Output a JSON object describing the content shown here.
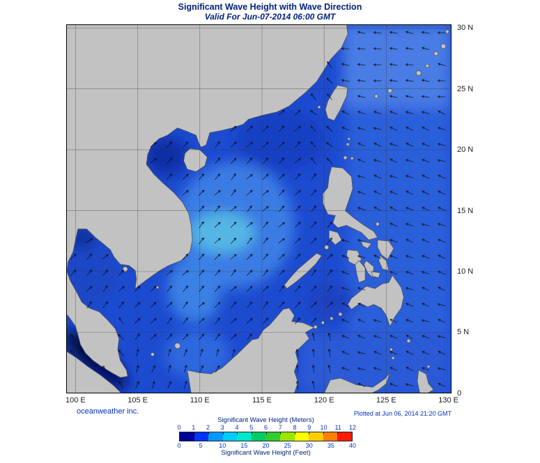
{
  "header": {
    "title": "Significant Wave Height with Wave Direction",
    "subtitle": "Valid For Jun-07-2014 06:00 GMT"
  },
  "map": {
    "lat_ticks": [
      {
        "text": "30 N",
        "deg": 30
      },
      {
        "text": "25 N",
        "deg": 25
      },
      {
        "text": "20 N",
        "deg": 20
      },
      {
        "text": "15 N",
        "deg": 15
      },
      {
        "text": "10 N",
        "deg": 10
      },
      {
        "text": "5 N",
        "deg": 5
      },
      {
        "text": "0",
        "deg": 0
      }
    ],
    "lon_ticks": [
      {
        "text": "100 E",
        "deg": 100
      },
      {
        "text": "105 E",
        "deg": 105
      },
      {
        "text": "110 E",
        "deg": 110
      },
      {
        "text": "115 E",
        "deg": 115
      },
      {
        "text": "120 E",
        "deg": 120
      },
      {
        "text": "125 E",
        "deg": 125
      },
      {
        "text": "130 E",
        "deg": 130
      }
    ],
    "sea_base_color": "#1c4bd0",
    "land_color": "#c2c2c2",
    "coast_color": "#4d4d4d",
    "grid_color": "#333333",
    "arrow_color": "#101010"
  },
  "footer": {
    "credit": "oceanweather inc.",
    "plotted_at": "Plotted at Jun 06, 2014 21:20 GMT"
  },
  "legend": {
    "meters_title": "Significant Wave Height (Meters)",
    "feet_title": "Significant Wave Height (Feet)",
    "meters_ticks": [
      "0",
      "1",
      "2",
      "3",
      "4",
      "5",
      "6",
      "7",
      "8",
      "9",
      "10",
      "11",
      "12"
    ],
    "feet_ticks": [
      "0",
      "5",
      "10",
      "15",
      "20",
      "25",
      "30",
      "35",
      "40"
    ],
    "colorbar_colors": [
      "#000099",
      "#0033ff",
      "#0099ff",
      "#00ccff",
      "#00e6c8",
      "#00cc66",
      "#33cc33",
      "#99e600",
      "#ffff00",
      "#ffcc00",
      "#ff8000",
      "#ff1a00"
    ]
  }
}
